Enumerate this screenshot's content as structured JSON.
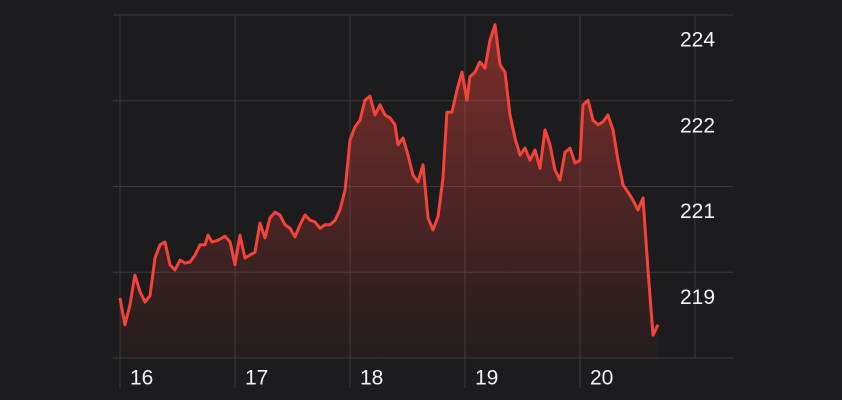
{
  "chart_data": {
    "type": "line",
    "x": [
      0,
      0.043,
      0.087,
      0.13,
      0.174,
      0.217,
      0.261,
      0.304,
      0.348,
      0.391,
      0.435,
      0.478,
      0.522,
      0.565,
      0.609,
      0.652,
      0.696,
      0.739,
      0.765,
      0.8,
      0.852,
      0.913,
      0.957,
      1,
      1.043,
      1.087,
      1.13,
      1.174,
      1.217,
      1.261,
      1.304,
      1.348,
      1.391,
      1.435,
      1.478,
      1.522,
      1.565,
      1.609,
      1.652,
      1.696,
      1.739,
      1.783,
      1.826,
      1.87,
      1.913,
      1.957,
      2,
      2.043,
      2.087,
      2.13,
      2.174,
      2.217,
      2.261,
      2.304,
      2.348,
      2.391,
      2.417,
      2.461,
      2.504,
      2.548,
      2.591,
      2.635,
      2.678,
      2.722,
      2.765,
      2.809,
      2.843,
      2.887,
      2.93,
      2.974,
      3.017,
      3.043,
      3.087,
      3.13,
      3.174,
      3.217,
      3.261,
      3.304,
      3.348,
      3.391,
      3.435,
      3.478,
      3.522,
      3.565,
      3.609,
      3.652,
      3.696,
      3.739,
      3.783,
      3.826,
      3.87,
      3.913,
      3.957,
      4,
      4.026,
      4.07,
      4.113,
      4.157,
      4.2,
      4.243,
      4.287,
      4.33,
      4.374,
      4.417,
      4.461,
      4.504,
      4.548,
      4.591,
      4.635,
      4.678
    ],
    "series": [
      {
        "color": "#f4443a",
        "values": [
          218.95,
          218.48,
          218.83,
          219.35,
          219.06,
          218.88,
          218.99,
          219.65,
          219.88,
          219.93,
          219.53,
          219.44,
          219.61,
          219.56,
          219.58,
          219.7,
          219.88,
          219.88,
          220.05,
          219.93,
          219.96,
          220.03,
          219.93,
          219.53,
          220.05,
          219.65,
          219.7,
          219.75,
          220.26,
          220.0,
          220.35,
          220.45,
          220.4,
          220.23,
          220.17,
          220.02,
          220.23,
          220.4,
          220.31,
          220.28,
          220.17,
          220.23,
          220.23,
          220.31,
          220.49,
          220.84,
          221.71,
          221.94,
          222.06,
          222.41,
          222.48,
          222.15,
          222.33,
          222.15,
          222.1,
          221.98,
          221.63,
          221.75,
          221.45,
          221.1,
          220.98,
          221.28,
          220.35,
          220.14,
          220.37,
          221.05,
          222.2,
          222.2,
          222.59,
          222.9,
          222.41,
          222.82,
          222.9,
          223.08,
          222.97,
          223.46,
          223.73,
          223.03,
          222.9,
          222.15,
          221.75,
          221.45,
          221.57,
          221.36,
          221.54,
          221.22,
          221.89,
          221.63,
          221.19,
          221.01,
          221.5,
          221.57,
          221.31,
          221.36,
          222.33,
          222.41,
          222.06,
          221.98,
          222.03,
          222.15,
          221.89,
          221.36,
          220.93,
          220.8,
          220.66,
          220.49,
          220.7,
          219.44,
          218.3,
          218.48
        ]
      }
    ],
    "xlim": [
      0,
      5
    ],
    "xticks": [
      {
        "value": 0,
        "label": "16"
      },
      {
        "value": 1,
        "label": "17"
      },
      {
        "value": 2,
        "label": "18"
      },
      {
        "value": 3,
        "label": "19"
      },
      {
        "value": 4,
        "label": "20"
      }
    ],
    "ylim": [
      217.9,
      223.9
    ],
    "yticks": [
      {
        "value": 223.9,
        "label": "224"
      },
      {
        "value": 222.4,
        "label": "222"
      },
      {
        "value": 220.9,
        "label": "221"
      },
      {
        "value": 219.4,
        "label": "219"
      }
    ],
    "grid": true
  }
}
